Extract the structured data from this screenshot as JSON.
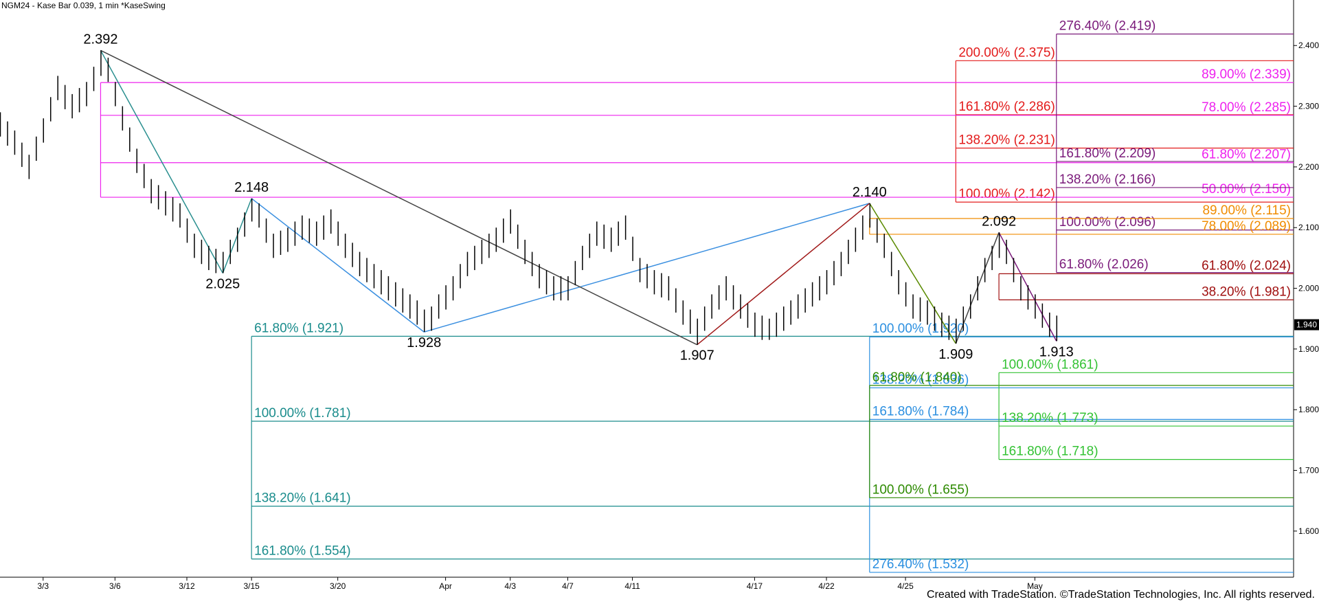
{
  "chart_data": {
    "type": "ohlc",
    "title": "NGM24 - Kase Bar 0.039, 1 min  *KaseSwing",
    "footer": "Created with TradeStation. ©TradeStation Technologies, Inc. All rights reserved.",
    "xlim": [
      0,
      180
    ],
    "ylim": [
      1.524,
      2.475
    ],
    "xticks": [
      {
        "value": 6,
        "label": "3/3"
      },
      {
        "value": 16,
        "label": "3/6"
      },
      {
        "value": 26,
        "label": "3/12"
      },
      {
        "value": 35,
        "label": "3/15"
      },
      {
        "value": 47,
        "label": "3/20"
      },
      {
        "value": 62,
        "label": "Apr"
      },
      {
        "value": 71,
        "label": "4/3"
      },
      {
        "value": 79,
        "label": "4/7"
      },
      {
        "value": 88,
        "label": "4/11"
      },
      {
        "value": 105,
        "label": "4/17"
      },
      {
        "value": 115,
        "label": "4/22"
      },
      {
        "value": 126,
        "label": "4/25"
      },
      {
        "value": 144,
        "label": "May"
      }
    ],
    "yticks": [
      {
        "value": 1.6,
        "label": "1.600"
      },
      {
        "value": 1.7,
        "label": "1.700"
      },
      {
        "value": 1.8,
        "label": "1.800"
      },
      {
        "value": 1.9,
        "label": "1.900"
      },
      {
        "value": 2.0,
        "label": "2.000"
      },
      {
        "value": 2.1,
        "label": "2.100"
      },
      {
        "value": 2.2,
        "label": "2.200"
      },
      {
        "value": 2.3,
        "label": "2.300"
      },
      {
        "value": 2.4,
        "label": "2.400"
      }
    ],
    "last": {
      "value": 1.94,
      "label": "1.940"
    },
    "bar_color": "#000000",
    "bars": {
      "high": [
        2.29,
        2.275,
        2.26,
        2.24,
        2.22,
        2.25,
        2.28,
        2.315,
        2.35,
        2.335,
        2.32,
        2.33,
        2.34,
        2.365,
        2.392,
        2.38,
        2.34,
        2.3,
        2.265,
        2.23,
        2.205,
        2.18,
        2.17,
        2.16,
        2.15,
        2.14,
        2.115,
        2.09,
        2.08,
        2.07,
        2.065,
        2.06,
        2.08,
        2.1,
        2.125,
        2.148,
        2.14,
        2.115,
        2.09,
        2.095,
        2.1,
        2.11,
        2.12,
        2.115,
        2.11,
        2.12,
        2.13,
        2.11,
        2.09,
        2.075,
        2.06,
        2.05,
        2.04,
        2.03,
        2.02,
        2.01,
        2.0,
        1.99,
        1.98,
        1.965,
        1.97,
        1.99,
        2.005,
        2.02,
        2.04,
        2.06,
        2.07,
        2.08,
        2.09,
        2.1,
        2.115,
        2.13,
        2.105,
        2.08,
        2.06,
        2.04,
        2.03,
        2.02,
        2.02,
        2.02,
        2.045,
        2.07,
        2.09,
        2.11,
        2.105,
        2.1,
        2.11,
        2.12,
        2.085,
        2.05,
        2.04,
        2.03,
        2.025,
        2.02,
        2.0,
        1.98,
        1.965,
        1.95,
        1.97,
        1.99,
        2.005,
        2.02,
        2.005,
        1.99,
        1.975,
        1.96,
        1.955,
        1.95,
        1.96,
        1.97,
        1.98,
        1.99,
        2.0,
        2.01,
        2.02,
        2.03,
        2.045,
        2.06,
        2.08,
        2.1,
        2.12,
        2.14,
        2.115,
        2.09,
        2.06,
        2.03,
        2.01,
        1.99,
        1.985,
        1.98,
        1.97,
        1.96,
        1.955,
        1.95,
        1.97,
        1.99,
        2.02,
        2.05,
        2.07,
        2.092,
        2.08,
        2.05,
        2.02,
        2.005,
        1.99,
        1.975,
        1.96,
        1.955
      ],
      "low": [
        2.25,
        2.235,
        2.22,
        2.2,
        2.18,
        2.21,
        2.24,
        2.275,
        2.31,
        2.295,
        2.28,
        2.29,
        2.3,
        2.325,
        2.35,
        2.34,
        2.3,
        2.26,
        2.225,
        2.19,
        2.165,
        2.14,
        2.13,
        2.12,
        2.11,
        2.1,
        2.075,
        2.05,
        2.04,
        2.03,
        2.025,
        2.025,
        2.04,
        2.06,
        2.085,
        2.11,
        2.1,
        2.075,
        2.05,
        2.055,
        2.06,
        2.07,
        2.08,
        2.075,
        2.07,
        2.08,
        2.09,
        2.07,
        2.05,
        2.035,
        2.02,
        2.01,
        2.0,
        1.99,
        1.98,
        1.97,
        1.96,
        1.95,
        1.94,
        1.928,
        1.93,
        1.95,
        1.965,
        1.98,
        2.0,
        2.02,
        2.03,
        2.04,
        2.05,
        2.06,
        2.075,
        2.09,
        2.065,
        2.04,
        2.02,
        2.0,
        1.99,
        1.98,
        1.98,
        1.98,
        2.005,
        2.03,
        2.05,
        2.07,
        2.065,
        2.06,
        2.07,
        2.08,
        2.045,
        2.01,
        2.0,
        1.99,
        1.985,
        1.98,
        1.96,
        1.94,
        1.925,
        1.907,
        1.93,
        1.95,
        1.965,
        1.98,
        1.965,
        1.95,
        1.935,
        1.92,
        1.915,
        1.915,
        1.92,
        1.93,
        1.94,
        1.95,
        1.96,
        1.97,
        1.98,
        1.99,
        2.005,
        2.02,
        2.04,
        2.06,
        2.08,
        2.1,
        2.075,
        2.05,
        2.02,
        1.99,
        1.97,
        1.95,
        1.945,
        1.94,
        1.93,
        1.92,
        1.915,
        1.909,
        1.93,
        1.95,
        1.98,
        2.01,
        2.03,
        2.05,
        2.04,
        2.01,
        1.98,
        1.965,
        1.95,
        1.935,
        1.92,
        1.913
      ]
    },
    "pivots": [
      {
        "x": 14,
        "value": 2.392,
        "label": "2.392",
        "position": "above"
      },
      {
        "x": 31,
        "value": 2.025,
        "label": "2.025",
        "position": "below"
      },
      {
        "x": 35,
        "value": 2.148,
        "label": "2.148",
        "position": "above"
      },
      {
        "x": 59,
        "value": 1.928,
        "label": "1.928",
        "position": "below"
      },
      {
        "x": 97,
        "value": 1.907,
        "label": "1.907",
        "position": "below"
      },
      {
        "x": 121,
        "value": 2.14,
        "label": "2.140",
        "position": "above"
      },
      {
        "x": 133,
        "value": 1.909,
        "label": "1.909",
        "position": "below"
      },
      {
        "x": 139,
        "value": 2.092,
        "label": "2.092",
        "position": "above"
      },
      {
        "x": 147,
        "value": 1.913,
        "label": "1.913",
        "position": "below"
      }
    ],
    "swing_lines": [
      {
        "points": [
          0,
          1
        ],
        "color": "#2a8f8f"
      },
      {
        "points": [
          1,
          2
        ],
        "color": "#2a8f8f"
      },
      {
        "points": [
          2,
          3
        ],
        "color": "#3a8fe0"
      },
      {
        "points": [
          3,
          5
        ],
        "color": "#3a8fe0"
      },
      {
        "points": [
          0,
          4
        ],
        "color": "#444444"
      },
      {
        "points": [
          4,
          5
        ],
        "color": "#a01818"
      },
      {
        "points": [
          5,
          6
        ],
        "color": "#5a8a00"
      },
      {
        "points": [
          6,
          7
        ],
        "color": "#444444"
      },
      {
        "points": [
          7,
          8
        ],
        "color": "#7a1a7a"
      }
    ],
    "fib_groups": [
      {
        "x": 35,
        "color": "#1a8c8c",
        "align": "left",
        "levels": [
          {
            "label": "61.80% (1.921)",
            "value": 1.921
          },
          {
            "label": "100.00% (1.781)",
            "value": 1.781
          },
          {
            "label": "138.20% (1.641)",
            "value": 1.641
          },
          {
            "label": "161.80% (1.554)",
            "value": 1.554
          }
        ]
      },
      {
        "x": 121,
        "color": "#2b8fe0",
        "align": "left",
        "levels": [
          {
            "label": "100.00% (1.920)",
            "value": 1.92
          },
          {
            "label": "138.20% (1.836)",
            "value": 1.836
          },
          {
            "label": "161.80% (1.784)",
            "value": 1.784
          },
          {
            "label": "276.40% (1.532)",
            "value": 1.532
          }
        ]
      },
      {
        "x": 121,
        "color": "#2d8a00",
        "align": "left",
        "levels": [
          {
            "label": "61.80% (1.840)",
            "value": 1.84
          },
          {
            "label": "100.00% (1.655)",
            "value": 1.655
          }
        ]
      },
      {
        "x": 139,
        "color": "#33c233",
        "align": "left",
        "levels": [
          {
            "label": "100.00% (1.861)",
            "value": 1.861
          },
          {
            "label": "138.20% (1.773)",
            "value": 1.773
          },
          {
            "label": "161.80% (1.718)",
            "value": 1.718
          }
        ]
      },
      {
        "x": 133,
        "color": "#e31b1b",
        "align": "left",
        "levels": [
          {
            "label": "200.00% (2.375)",
            "value": 2.375
          },
          {
            "label": "161.80% (2.286)",
            "value": 2.286
          },
          {
            "label": "138.20% (2.231)",
            "value": 2.231
          },
          {
            "label": "100.00% (2.142)",
            "value": 2.142
          }
        ]
      },
      {
        "x": 14,
        "color": "#ee22ee",
        "align": "right",
        "levels": [
          {
            "label": "89.00% (2.339)",
            "value": 2.339
          },
          {
            "label": "78.00% (2.285)",
            "value": 2.285
          },
          {
            "label": "61.80% (2.207)",
            "value": 2.207
          },
          {
            "label": "50.00% (2.150)",
            "value": 2.15
          }
        ]
      },
      {
        "x": 147,
        "color": "#7a1a7a",
        "align": "left",
        "levels": [
          {
            "label": "276.40% (2.419)",
            "value": 2.419
          },
          {
            "label": "161.80% (2.209)",
            "value": 2.209
          },
          {
            "label": "138.20% (2.166)",
            "value": 2.166
          },
          {
            "label": "100.00% (2.096)",
            "value": 2.096
          },
          {
            "label": "61.80% (2.026)",
            "value": 2.026
          }
        ]
      },
      {
        "x": 121,
        "color": "#f08c00",
        "align": "right",
        "levels": [
          {
            "label": "89.00% (2.115)",
            "value": 2.115
          },
          {
            "label": "78.00% (2.089)",
            "value": 2.089
          }
        ]
      },
      {
        "x": 139,
        "color": "#a01010",
        "align": "right",
        "levels": [
          {
            "label": "61.80% (2.024)",
            "value": 2.024
          },
          {
            "label": "38.20% (1.981)",
            "value": 1.981
          }
        ]
      }
    ]
  }
}
